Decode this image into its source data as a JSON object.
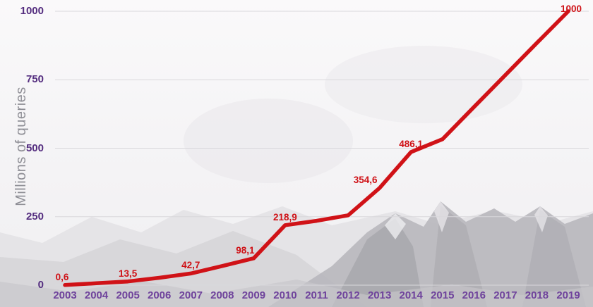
{
  "colors": {
    "line_red": "#d01217",
    "value_label_red": "#cf1116",
    "y_tick_purple": "#542d7f",
    "year_purple": "#6f439c",
    "axis_title_gray": "#8e8e95",
    "gridline_gray": "#d9d8dc"
  },
  "chart_data": {
    "type": "line",
    "title": "",
    "xlabel": "",
    "ylabel": "Millions of queries",
    "x": [
      "2003",
      "2004",
      "2005",
      "2006",
      "2007",
      "2008",
      "2009",
      "2010",
      "2011",
      "2012",
      "2013",
      "2014",
      "2015",
      "2016",
      "2017",
      "2018",
      "2019"
    ],
    "series": [
      {
        "name": "queries",
        "color": "#d01217",
        "values": [
          0.6,
          7,
          13.5,
          27,
          42.7,
          70,
          98.1,
          218.9,
          235,
          255,
          354.6,
          486.1,
          533,
          650,
          767,
          884,
          1000
        ]
      }
    ],
    "point_labels": [
      "0,6",
      null,
      "13,5",
      null,
      "42,7",
      null,
      "98,1",
      "218,9",
      null,
      null,
      "354,6",
      "486,1",
      null,
      null,
      null,
      null,
      "1000"
    ],
    "ylim": [
      0,
      1000
    ],
    "yticks": [
      0,
      250,
      500,
      750,
      1000
    ],
    "grid": true,
    "legend": false,
    "background": "grayscale mountain landscape photo"
  }
}
